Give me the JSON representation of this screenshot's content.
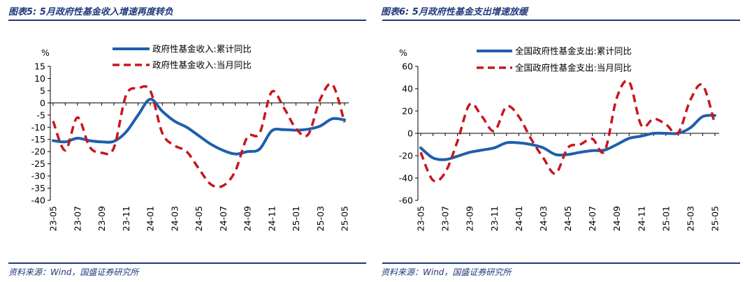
{
  "charts": [
    {
      "title": "图表5:  5月政府性基金收入增速再度转负",
      "source": "资料来源：Wind，国盛证券研究所"
    },
    {
      "title": "图表6:  5月政府性基金支出增速放缓",
      "source": "资料来源：Wind，国盛证券研究所"
    }
  ],
  "colors": {
    "accent": "#1f3a7a",
    "series_solid": "#1f5fad",
    "series_dashed": "#c8161d"
  },
  "chart_data": [
    {
      "type": "line",
      "title": "图表5:  5月政府性基金收入增速再度转负",
      "ylabel": "%",
      "ylim": [
        -40,
        15
      ],
      "yticks": [
        15,
        10,
        5,
        0,
        -5,
        -10,
        -15,
        -20,
        -25,
        -30,
        -35,
        -40
      ],
      "x": [
        "23-05",
        "23-06",
        "23-07",
        "23-08",
        "23-09",
        "23-10",
        "23-11",
        "23-12",
        "24-01",
        "24-02",
        "24-03",
        "24-04",
        "24-05",
        "24-06",
        "24-07",
        "24-08",
        "24-09",
        "24-10",
        "24-11",
        "24-12",
        "25-01",
        "25-02",
        "25-03",
        "25-04",
        "25-05"
      ],
      "xtick_labels": [
        "23-05",
        "23-07",
        "23-09",
        "23-11",
        "24-01",
        "24-03",
        "24-05",
        "24-07",
        "24-09",
        "24-11",
        "25-01",
        "25-03",
        "25-05"
      ],
      "legend_position": "top",
      "grid": false,
      "series": [
        {
          "name": "政府性基金收入:累计同比",
          "style": "solid",
          "color": "#1f5fad",
          "values": [
            -15.5,
            -16.0,
            -14.5,
            -15.5,
            -16.0,
            -15.8,
            -12.0,
            -5.0,
            1.5,
            -3.5,
            -7.5,
            -10.0,
            -13.5,
            -17.0,
            -19.5,
            -21.0,
            -20.0,
            -19.0,
            -11.5,
            -11.0,
            -11.2,
            -10.8,
            -9.5,
            -6.5,
            -7.0
          ]
        },
        {
          "name": "政府性基金收入:当月同比",
          "style": "dashed",
          "color": "#c8161d",
          "values": [
            -7.5,
            -19.5,
            -6.0,
            -18.0,
            -20.5,
            -18.5,
            3.0,
            6.0,
            5.0,
            -12.5,
            -17.5,
            -20.0,
            -27.0,
            -33.5,
            -34.0,
            -28.0,
            -14.0,
            -12.5,
            4.5,
            -2.0,
            -10.5,
            -13.0,
            1.5,
            7.5,
            -8.0
          ]
        }
      ]
    },
    {
      "type": "line",
      "title": "图表6:  5月政府性基金支出增速放缓",
      "ylabel": "%",
      "ylim": [
        -60,
        60
      ],
      "yticks": [
        60,
        40,
        20,
        0,
        -20,
        -40,
        -60
      ],
      "x": [
        "23-05",
        "23-06",
        "23-07",
        "23-08",
        "23-09",
        "23-10",
        "23-11",
        "23-12",
        "24-01",
        "24-02",
        "24-03",
        "24-04",
        "24-05",
        "24-06",
        "24-07",
        "24-08",
        "24-09",
        "24-10",
        "24-11",
        "24-12",
        "25-01",
        "25-02",
        "25-03",
        "25-04",
        "25-05"
      ],
      "xtick_labels": [
        "23-05",
        "23-07",
        "23-09",
        "23-11",
        "24-01",
        "24-03",
        "24-05",
        "24-07",
        "24-09",
        "24-11",
        "25-01",
        "25-03",
        "25-05"
      ],
      "legend_position": "top",
      "grid": false,
      "series": [
        {
          "name": "全国政府性基金支出:累计同比",
          "style": "solid",
          "color": "#1f5fad",
          "values": [
            -13.0,
            -22.0,
            -23.5,
            -20.5,
            -17.0,
            -15.0,
            -13.0,
            -8.5,
            -8.5,
            -10.0,
            -13.0,
            -19.0,
            -19.0,
            -17.0,
            -15.5,
            -15.0,
            -10.0,
            -4.5,
            -2.5,
            0.0,
            0.0,
            0.0,
            5.0,
            15.0,
            16.0
          ]
        },
        {
          "name": "全国政府性基金支出:当月同比",
          "style": "dashed",
          "color": "#c8161d",
          "values": [
            -17.0,
            -42.0,
            -35.0,
            -7.0,
            26.0,
            15.0,
            2.0,
            24.0,
            15.0,
            -5.0,
            -22.0,
            -36.0,
            -13.0,
            -10.0,
            -5.0,
            -16.0,
            32.0,
            46.0,
            7.0,
            13.0,
            8.0,
            0.5,
            30.0,
            43.0,
            8.0
          ]
        }
      ]
    }
  ]
}
